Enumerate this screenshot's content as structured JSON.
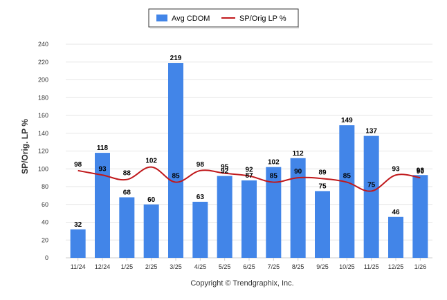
{
  "chart_data": {
    "type": "bar",
    "title": "",
    "xlabel": "",
    "ylabel": "SP/Orig. LP %",
    "ylim": [
      0,
      240
    ],
    "yticks": [
      0,
      20,
      40,
      60,
      80,
      100,
      120,
      140,
      160,
      180,
      200,
      220,
      240
    ],
    "grid": true,
    "legend_position": "top-center",
    "categories": [
      "11/24",
      "12/24",
      "1/25",
      "2/25",
      "3/25",
      "4/25",
      "5/25",
      "6/25",
      "7/25",
      "8/25",
      "9/25",
      "10/25",
      "11/25",
      "12/25",
      "1/26"
    ],
    "series": [
      {
        "name": "Avg CDOM",
        "type": "bar",
        "color": "#4285e8",
        "values": [
          32,
          118,
          68,
          60,
          219,
          63,
          92,
          87,
          102,
          112,
          75,
          149,
          137,
          46,
          93
        ]
      },
      {
        "name": "SP/Orig LP %",
        "type": "line",
        "color": "#c0181b",
        "values": [
          98,
          93,
          88,
          102,
          85,
          98,
          95,
          92,
          85,
          90,
          89,
          85,
          75,
          93,
          90
        ]
      }
    ],
    "copyright": "Copyright © Trendgraphix, Inc."
  }
}
